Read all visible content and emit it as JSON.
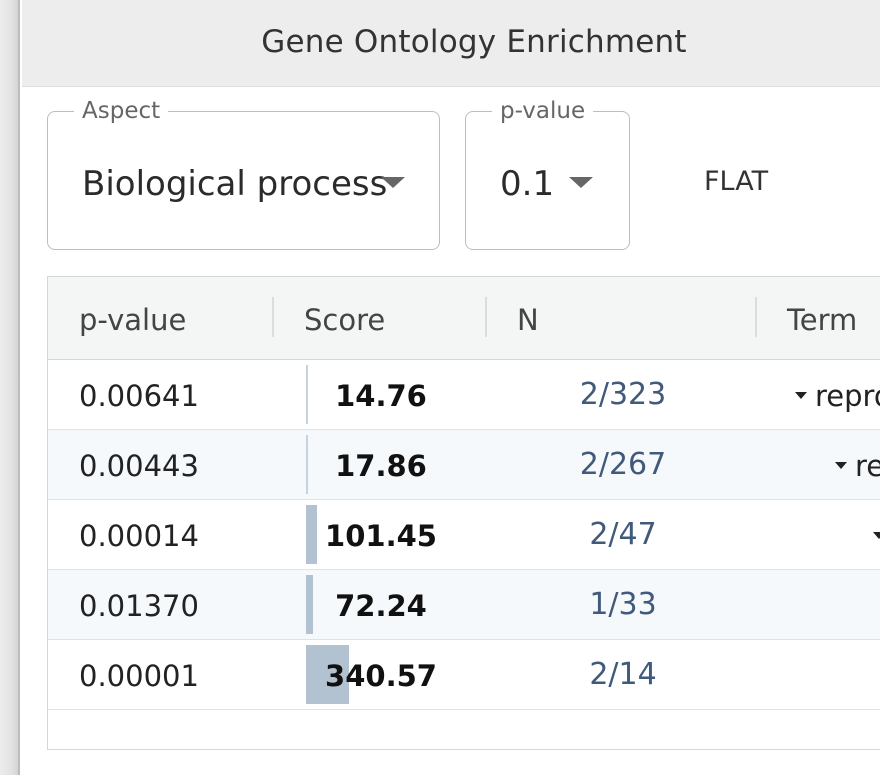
{
  "header": {
    "title": "Gene Ontology Enrichment"
  },
  "filters": {
    "aspect": {
      "legend": "Aspect",
      "value": "Biological process"
    },
    "pvalue": {
      "legend": "p-value",
      "value": "0.1"
    },
    "mode_button": "FLAT"
  },
  "table": {
    "columns": [
      "p-value",
      "Score",
      "N",
      "Term"
    ],
    "rows": [
      {
        "p_value": "0.00641",
        "score": "14.76",
        "score_fraction": 0.0,
        "n": "2/323",
        "term": "repro"
      },
      {
        "p_value": "0.00443",
        "score": "17.86",
        "score_fraction": 0.01,
        "n": "2/267",
        "term": "re"
      },
      {
        "p_value": "0.00014",
        "score": "101.45",
        "score_fraction": 0.25,
        "n": "2/47",
        "term": ""
      },
      {
        "p_value": "0.01370",
        "score": "72.24",
        "score_fraction": 0.17,
        "n": "1/33",
        "term": ""
      },
      {
        "p_value": "0.00001",
        "score": "340.57",
        "score_fraction": 1.0,
        "n": "2/14",
        "term": ""
      }
    ]
  },
  "colors": {
    "header_bg": "#ededed",
    "score_bar": "#b3c2d1",
    "n_text": "#41597a",
    "alt_row": "#f6f9fb"
  }
}
